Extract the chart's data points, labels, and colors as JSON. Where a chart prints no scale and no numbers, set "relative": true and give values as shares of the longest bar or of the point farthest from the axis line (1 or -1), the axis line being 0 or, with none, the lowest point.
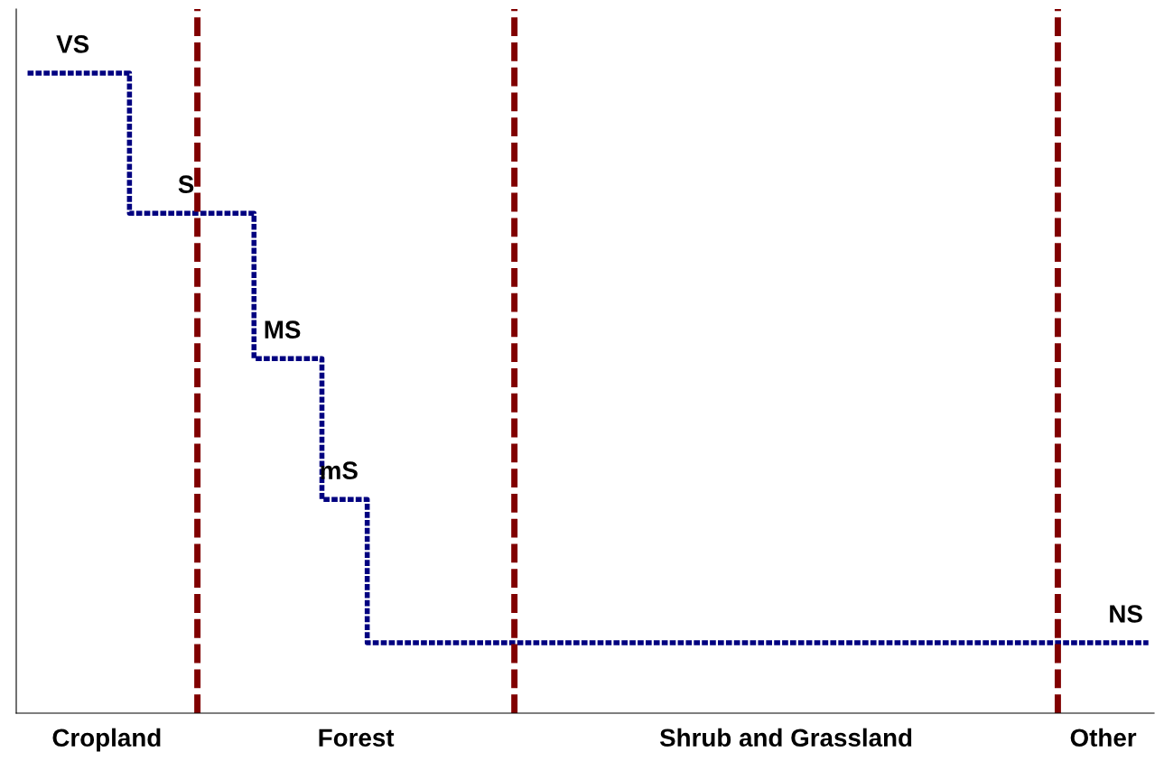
{
  "chart_data": {
    "type": "step",
    "relative": true,
    "categories": [
      null,
      null,
      null,
      null,
      null,
      null,
      null,
      "Cropland",
      null,
      null,
      null,
      null,
      null,
      null,
      null,
      null,
      null,
      null,
      null,
      null,
      null,
      null,
      null,
      null,
      null,
      null,
      null,
      null,
      null,
      "Forest",
      null,
      null,
      null,
      null,
      null,
      null,
      null,
      null,
      null,
      null,
      null,
      null,
      null,
      null,
      null,
      null,
      null,
      null,
      null,
      null,
      null,
      null,
      null,
      null,
      null,
      null,
      null,
      null,
      null,
      null,
      null,
      null,
      null,
      null,
      null,
      null,
      null,
      "Shrub and Grassland",
      null,
      null,
      null,
      null,
      null,
      null,
      null,
      null,
      null,
      null,
      null,
      null,
      null,
      null,
      null,
      null,
      null,
      null,
      null,
      null,
      null,
      null,
      null,
      null,
      null,
      null,
      null,
      "Other",
      null,
      null,
      null,
      null
    ],
    "series": [
      {
        "color": "#000080",
        "values": [
          1,
          1,
          1,
          1,
          1,
          1,
          1,
          1,
          1,
          0.781,
          0.781,
          0.781,
          0.781,
          0.781,
          0.781,
          0.781,
          0.781,
          0.781,
          0.781,
          0.781,
          0.554,
          0.554,
          0.554,
          0.554,
          0.554,
          0.554,
          0.334,
          0.334,
          0.334,
          0.334,
          0.11,
          0.11,
          0.11,
          0.11,
          0.11,
          0.11,
          0.11,
          0.11,
          0.11,
          0.11,
          0.11,
          0.11,
          0.11,
          0.11,
          0.11,
          0.11,
          0.11,
          0.11,
          0.11,
          0.11,
          0.11,
          0.11,
          0.11,
          0.11,
          0.11,
          0.11,
          0.11,
          0.11,
          0.11,
          0.11,
          0.11,
          0.11,
          0.11,
          0.11,
          0.11,
          0.11,
          0.11,
          0.11,
          0.11,
          0.11,
          0.11,
          0.11,
          0.11,
          0.11,
          0.11,
          0.11,
          0.11,
          0.11,
          0.11,
          0.11,
          0.11,
          0.11,
          0.11,
          0.11,
          0.11,
          0.11,
          0.11,
          0.11,
          0.11,
          0.11,
          0.11,
          0.11,
          0.11,
          0.11,
          0.11,
          0.11,
          0.11,
          0.11,
          0.11,
          0.11
        ]
      }
    ],
    "line_style": "dashed",
    "annotations": [
      {
        "text": "VS",
        "y": 1
      },
      {
        "text": "S",
        "y": 0.781
      },
      {
        "text": "MS",
        "y": 0.554
      },
      {
        "text": "mS",
        "y": 0.334
      },
      {
        "text": "NS",
        "y": 0.11
      }
    ],
    "grid": false
  }
}
